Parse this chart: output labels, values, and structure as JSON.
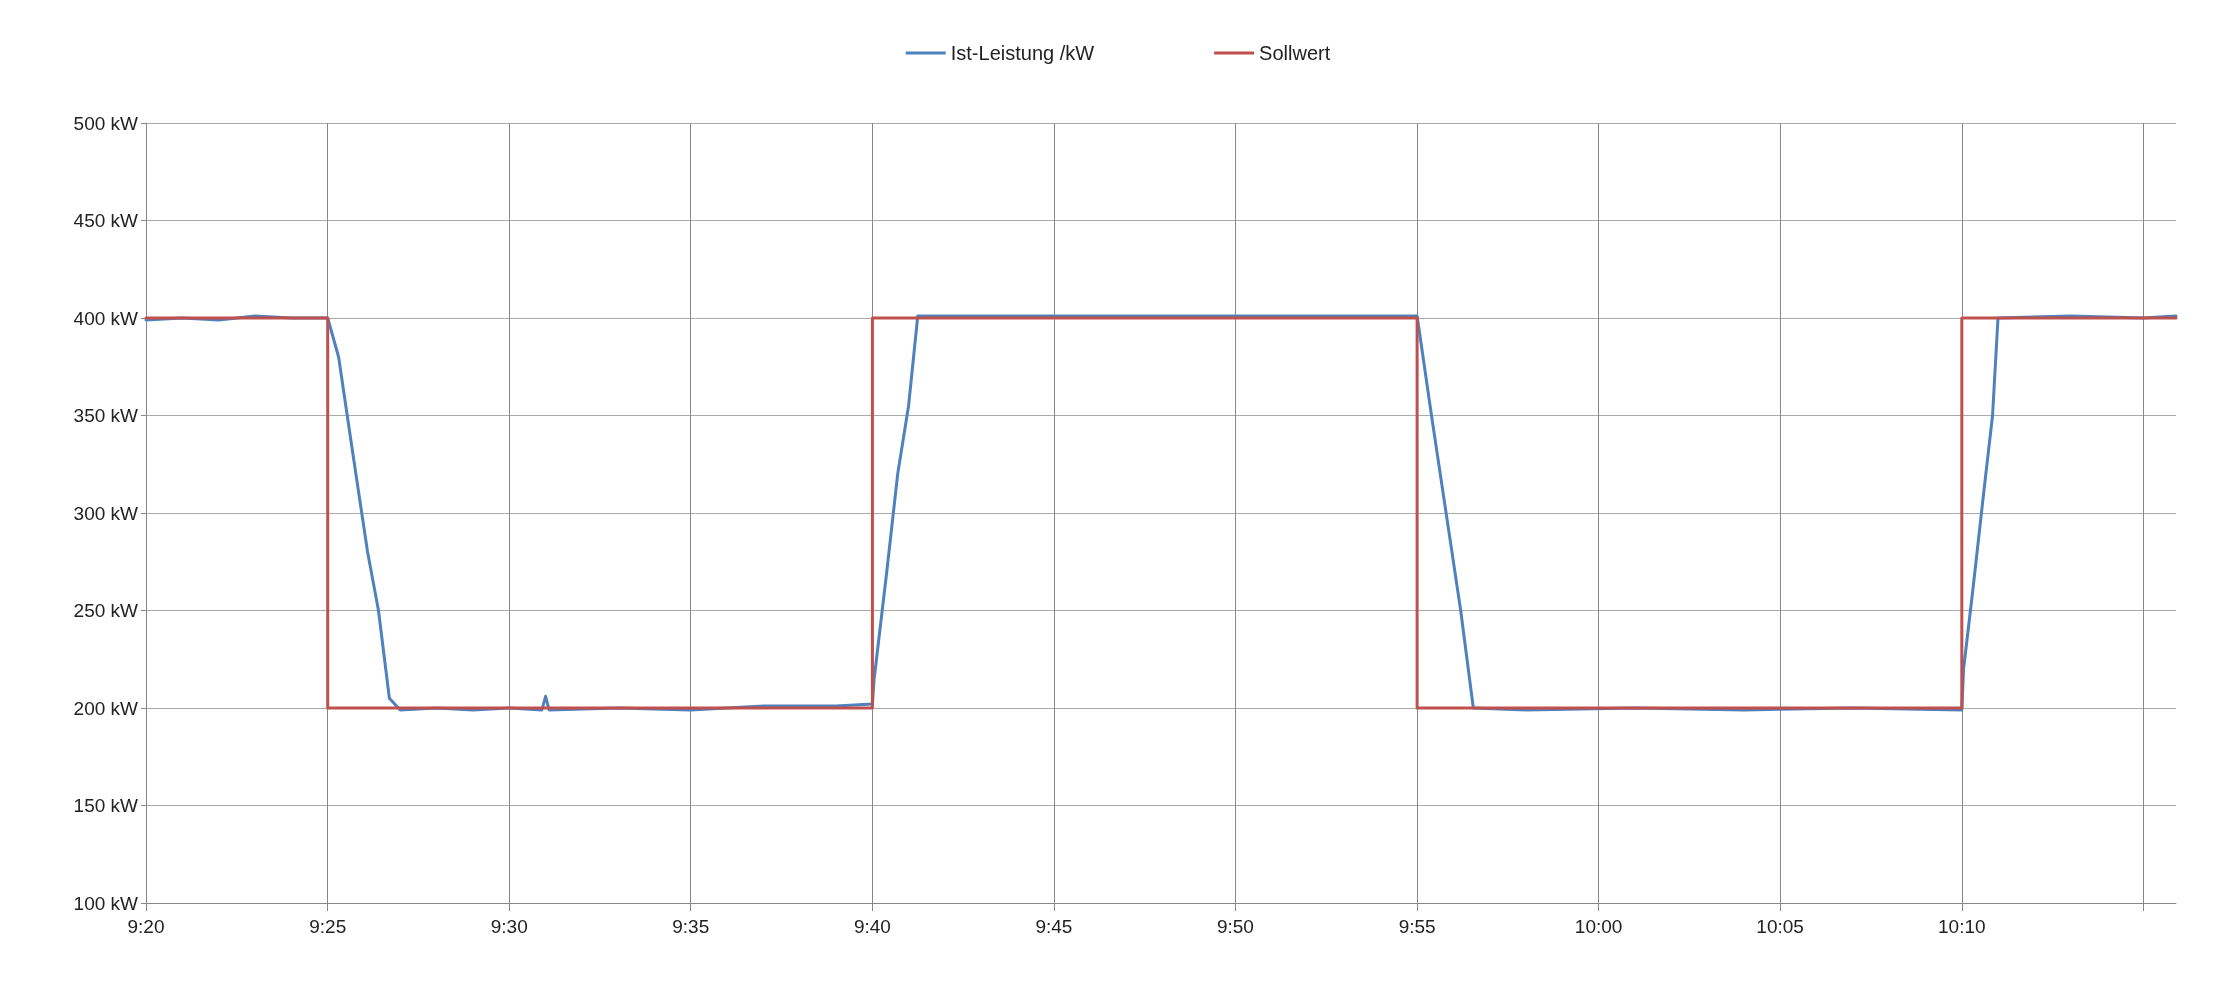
{
  "chart_data": {
    "type": "line",
    "legend": "top",
    "grid": true,
    "line_style": "solid",
    "marker": "none",
    "xlim": [
      9.3333,
      10.265
    ],
    "ylim": [
      100,
      500
    ],
    "xticks": [
      {
        "value": 9.3333,
        "label": "9:20"
      },
      {
        "value": 9.4167,
        "label": "9:25"
      },
      {
        "value": 9.5,
        "label": "9:30"
      },
      {
        "value": 9.5833,
        "label": "9:35"
      },
      {
        "value": 9.6667,
        "label": "9:40"
      },
      {
        "value": 9.75,
        "label": "9:45"
      },
      {
        "value": 9.8333,
        "label": "9:50"
      },
      {
        "value": 9.9167,
        "label": "9:55"
      },
      {
        "value": 10,
        "label": "10:00"
      },
      {
        "value": 10.0833,
        "label": "10:05"
      },
      {
        "value": 10.1667,
        "label": "10:10"
      },
      {
        "value": 10.25,
        "label": null
      }
    ],
    "yticks": [
      {
        "value": 100,
        "label": "100 kW"
      },
      {
        "value": 150,
        "label": "150 kW"
      },
      {
        "value": 200,
        "label": "200 kW"
      },
      {
        "value": 250,
        "label": "250 kW"
      },
      {
        "value": 300,
        "label": "300 kW"
      },
      {
        "value": 350,
        "label": "350 kW"
      },
      {
        "value": 400,
        "label": "400 kW"
      },
      {
        "value": 450,
        "label": "450 kW"
      },
      {
        "value": 500,
        "label": "500 kW"
      }
    ],
    "series": [
      {
        "name": "Ist-Leistung /kW",
        "color": "#4f81bd",
        "x": [
          9.3333,
          9.35,
          9.3667,
          9.3833,
          9.4,
          9.4167,
          9.4217,
          9.4283,
          9.435,
          9.44,
          9.445,
          9.45,
          9.4667,
          9.4833,
          9.5,
          9.515,
          9.5167,
          9.5183,
          9.55,
          9.5833,
          9.6167,
          9.65,
          9.6667,
          9.6675,
          9.6733,
          9.6783,
          9.6833,
          9.6875,
          9.7,
          9.75,
          9.8,
          9.85,
          9.9,
          9.9167,
          9.9233,
          9.93,
          9.9367,
          9.9425,
          9.9667,
          10.0167,
          10.0667,
          10.1167,
          10.1667,
          10.1675,
          10.1717,
          10.1767,
          10.1808,
          10.1833,
          10.2167,
          10.25,
          10.265
        ],
        "values": [
          399,
          400,
          399,
          401,
          400,
          400,
          380,
          330,
          280,
          250,
          205,
          199,
          200,
          199,
          200,
          199,
          206,
          199,
          200,
          199,
          201,
          201,
          202,
          215,
          270,
          320,
          355,
          401,
          401,
          401,
          401,
          401,
          401,
          401,
          350,
          300,
          250,
          200,
          199,
          200,
          199,
          200,
          199,
          220,
          260,
          310,
          350,
          400,
          401,
          400,
          401
        ]
      },
      {
        "name": "Sollwert",
        "type": "step",
        "color": "#c0504d",
        "x": [
          9.3333,
          9.4167,
          9.6667,
          9.9167,
          10.1667,
          10.265
        ],
        "values": [
          400,
          200,
          400,
          200,
          400,
          400
        ]
      }
    ]
  }
}
